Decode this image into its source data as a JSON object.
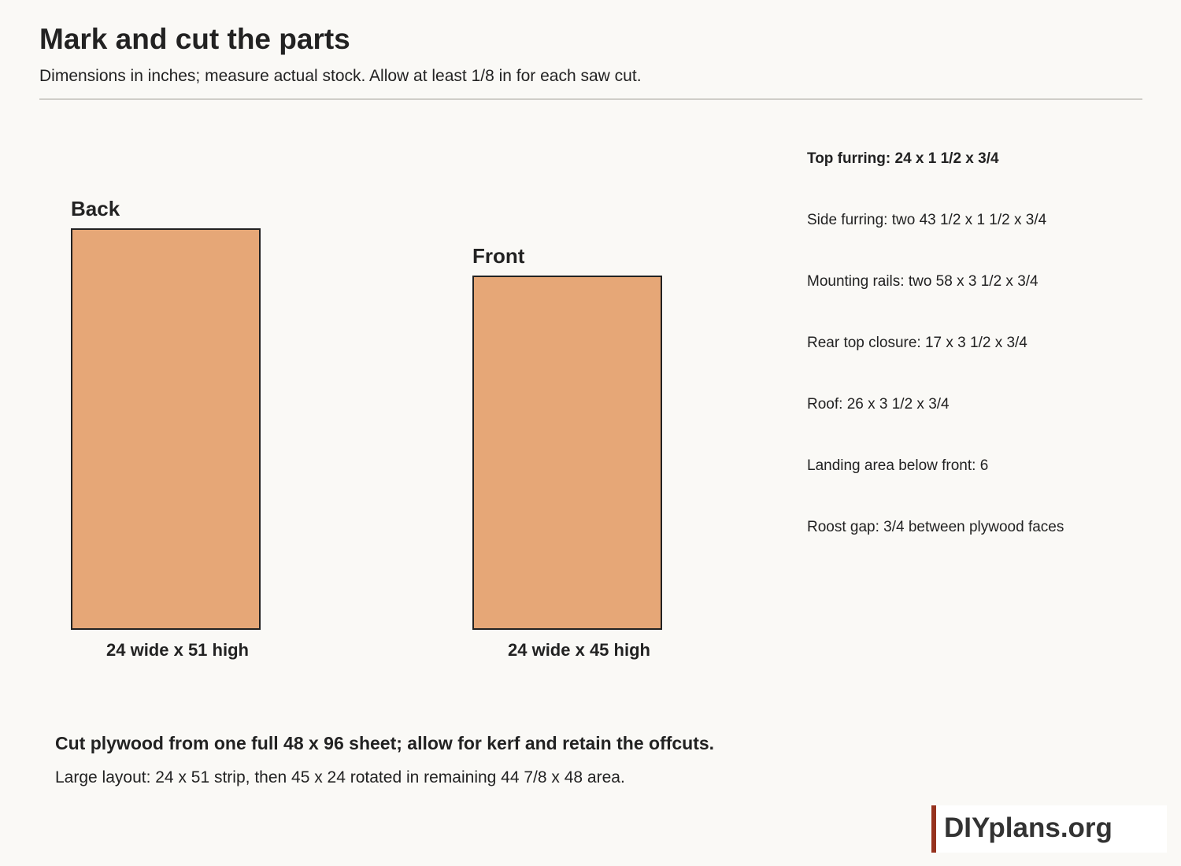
{
  "header": {
    "title": "Mark and cut the parts",
    "subtitle": "Dimensions in inches; measure actual stock. Allow at least 1/8 in for each saw cut."
  },
  "parts": [
    {
      "label": "Back",
      "dimensions": "24 wide x 51 high",
      "width_in": 24,
      "height_in": 51
    },
    {
      "label": "Front",
      "dimensions": "24 wide x 45 high",
      "width_in": 24,
      "height_in": 45
    }
  ],
  "specs": [
    "Top furring: 24 x 1 1/2 x 3/4",
    "Side furring: two 43 1/2 x 1 1/2 x 3/4",
    "Mounting rails: two 58 x 3 1/2 x 3/4",
    "Rear top closure: 17 x 3 1/2 x 3/4",
    "Roof: 26 x 3 1/2 x 3/4",
    "Landing area below front: 6",
    "Roost gap: 3/4 between plywood faces"
  ],
  "notes": {
    "cut": "Cut plywood from one full 48 x 96 sheet; allow for kerf and retain the offcuts.",
    "layout": "Large layout: 24 x 51 strip, then 45 x 24 rotated in remaining 44 7/8 x 48 area."
  },
  "brand": {
    "text": "DIYplans.org"
  },
  "colors": {
    "plywood_fill": "#e6a777",
    "outline": "#222222",
    "brand_accent": "#96321e",
    "background": "#faf9f6"
  }
}
